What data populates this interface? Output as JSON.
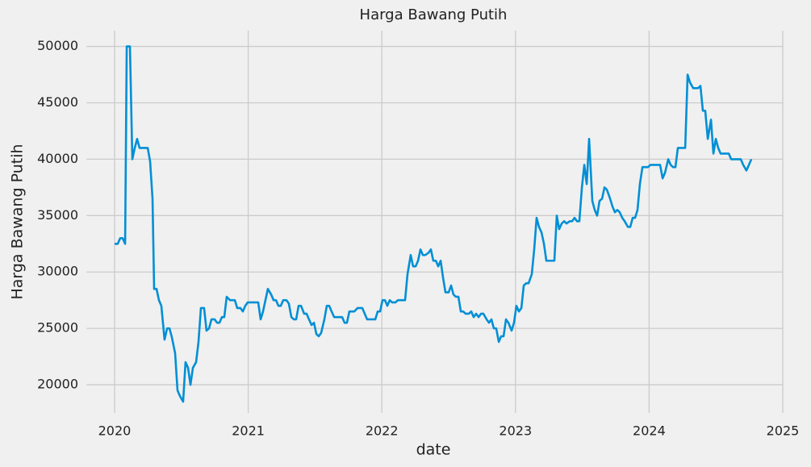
{
  "chart_data": {
    "type": "line",
    "title": "Harga Bawang Putih",
    "x_label": "date",
    "y_label": "Harga Bawang Putih",
    "color": "#008fd5",
    "grid": true,
    "xlim": [
      2019.79,
      2025.0
    ],
    "xticks": [
      2020,
      2021,
      2022,
      2023,
      2024,
      2025
    ],
    "ylim": [
      17500,
      51400
    ],
    "yticks": [
      20000,
      25000,
      30000,
      35000,
      40000,
      45000,
      50000
    ],
    "x": [
      2020,
      2020.024,
      2020.042,
      2020.06,
      2020.079,
      2020.091,
      2020.115,
      2020.133,
      2020.151,
      2020.169,
      2020.187,
      2020.211,
      2020.229,
      2020.248,
      2020.266,
      2020.284,
      2020.296,
      2020.314,
      2020.332,
      2020.35,
      2020.374,
      2020.393,
      2020.411,
      2020.429,
      2020.453,
      2020.471,
      2020.489,
      2020.513,
      2020.531,
      2020.55,
      2020.568,
      2020.586,
      2020.61,
      2020.628,
      2020.646,
      2020.67,
      2020.688,
      2020.707,
      2020.725,
      2020.749,
      2020.767,
      2020.785,
      2020.803,
      2020.821,
      2020.839,
      2020.864,
      2020.882,
      2020.9,
      2020.918,
      2020.942,
      2020.96,
      2020.978,
      2020.996,
      2021.021,
      2021.039,
      2021.057,
      2021.075,
      2021.093,
      2021.111,
      2021.129,
      2021.147,
      2021.172,
      2021.19,
      2021.208,
      2021.226,
      2021.244,
      2021.262,
      2021.286,
      2021.304,
      2021.323,
      2021.341,
      2021.359,
      2021.377,
      2021.395,
      2021.419,
      2021.437,
      2021.455,
      2021.474,
      2021.492,
      2021.51,
      2021.528,
      2021.546,
      2021.57,
      2021.588,
      2021.606,
      2021.624,
      2021.643,
      2021.661,
      2021.685,
      2021.703,
      2021.721,
      2021.739,
      2021.757,
      2021.775,
      2021.794,
      2021.818,
      2021.836,
      2021.854,
      2021.872,
      2021.89,
      2021.908,
      2021.932,
      2021.951,
      2021.969,
      2021.987,
      2022.005,
      2022.023,
      2022.041,
      2022.059,
      2022.077,
      2022.102,
      2022.12,
      2022.138,
      2022.156,
      2022.174,
      2022.192,
      2022.216,
      2022.234,
      2022.253,
      2022.271,
      2022.289,
      2022.307,
      2022.325,
      2022.349,
      2022.367,
      2022.385,
      2022.404,
      2022.422,
      2022.44,
      2022.458,
      2022.476,
      2022.5,
      2022.518,
      2022.536,
      2022.554,
      2022.573,
      2022.591,
      2022.609,
      2022.627,
      2022.651,
      2022.669,
      2022.687,
      2022.705,
      2022.724,
      2022.742,
      2022.76,
      2022.784,
      2022.802,
      2022.82,
      2022.838,
      2022.856,
      2022.875,
      2022.893,
      2022.911,
      2022.929,
      2022.947,
      2022.971,
      2022.989,
      2023.007,
      2023.026,
      2023.044,
      2023.062,
      2023.08,
      2023.098,
      2023.122,
      2023.14,
      2023.158,
      2023.176,
      2023.195,
      2023.213,
      2023.231,
      2023.249,
      2023.273,
      2023.291,
      2023.309,
      2023.327,
      2023.346,
      2023.364,
      2023.382,
      2023.406,
      2023.424,
      2023.442,
      2023.46,
      2023.478,
      2023.497,
      2023.515,
      2023.533,
      2023.551,
      2023.575,
      2023.593,
      2023.611,
      2023.629,
      2023.648,
      2023.666,
      2023.684,
      2023.708,
      2023.726,
      2023.744,
      2023.762,
      2023.78,
      2023.799,
      2023.817,
      2023.841,
      2023.859,
      2023.877,
      2023.895,
      2023.913,
      2023.931,
      2023.95,
      2023.968,
      2023.992,
      2024.01,
      2024.028,
      2024.046,
      2024.064,
      2024.082,
      2024.101,
      2024.119,
      2024.143,
      2024.161,
      2024.179,
      2024.197,
      2024.215,
      2024.233,
      2024.252,
      2024.27,
      2024.288,
      2024.306,
      2024.33,
      2024.348,
      2024.366,
      2024.384,
      2024.402,
      2024.42,
      2024.439,
      2024.463,
      2024.481,
      2024.499,
      2024.517,
      2024.535,
      2024.553,
      2024.571,
      2024.596,
      2024.614,
      2024.632,
      2024.65,
      2024.668,
      2024.686,
      2024.704,
      2024.728,
      2024.747,
      2024.765
    ],
    "values": [
      32500,
      32500,
      33000,
      33000,
      32500,
      50000,
      50000,
      40000,
      41000,
      41800,
      41000,
      41000,
      41000,
      41000,
      39800,
      36500,
      28500,
      28500,
      27500,
      27000,
      24000,
      25000,
      25000,
      24200,
      22800,
      19500,
      19000,
      18500,
      22000,
      21500,
      20000,
      21500,
      22000,
      23800,
      26800,
      26800,
      24800,
      25000,
      25800,
      25800,
      25500,
      25500,
      26000,
      26000,
      27800,
      27500,
      27500,
      27500,
      26800,
      26800,
      26500,
      27000,
      27300,
      27300,
      27300,
      27300,
      27300,
      25800,
      26500,
      27500,
      28500,
      28000,
      27500,
      27500,
      27000,
      27000,
      27500,
      27500,
      27200,
      26000,
      25800,
      25800,
      27000,
      27000,
      26300,
      26300,
      25800,
      25300,
      25500,
      24500,
      24300,
      24600,
      25800,
      27000,
      27000,
      26500,
      26000,
      26000,
      26000,
      26000,
      25500,
      25500,
      26500,
      26500,
      26500,
      26800,
      26800,
      26800,
      26300,
      25800,
      25800,
      25800,
      25800,
      26500,
      26500,
      27500,
      27500,
      27000,
      27500,
      27300,
      27300,
      27500,
      27500,
      27500,
      27500,
      29800,
      31500,
      30500,
      30500,
      31000,
      32000,
      31500,
      31500,
      31700,
      32000,
      31000,
      31000,
      30500,
      31000,
      29500,
      28200,
      28200,
      28800,
      28000,
      27800,
      27800,
      26500,
      26500,
      26300,
      26300,
      26500,
      26000,
      26300,
      26000,
      26300,
      26300,
      25800,
      25500,
      25800,
      25000,
      25000,
      23800,
      24300,
      24300,
      25800,
      25500,
      24800,
      25500,
      27000,
      26500,
      26800,
      28800,
      29000,
      29000,
      29800,
      32000,
      34800,
      34000,
      33500,
      32500,
      31000,
      31000,
      31000,
      31000,
      35000,
      33800,
      34300,
      34500,
      34300,
      34500,
      34500,
      34800,
      34500,
      34500,
      37500,
      39500,
      37800,
      41800,
      36300,
      35500,
      35000,
      36300,
      36500,
      37500,
      37300,
      36500,
      35800,
      35300,
      35500,
      35300,
      34800,
      34500,
      34000,
      34000,
      34800,
      34800,
      35500,
      37800,
      39300,
      39300,
      39300,
      39500,
      39500,
      39500,
      39500,
      39500,
      38300,
      38800,
      40000,
      39500,
      39300,
      39300,
      41000,
      41000,
      41000,
      41000,
      47500,
      46800,
      46300,
      46300,
      46300,
      46500,
      44300,
      44300,
      41800,
      43500,
      40500,
      41800,
      41000,
      40500,
      40500,
      40500,
      40500,
      40000,
      40000,
      40000,
      40000,
      40000,
      39500,
      39000,
      39500,
      40000
    ]
  }
}
